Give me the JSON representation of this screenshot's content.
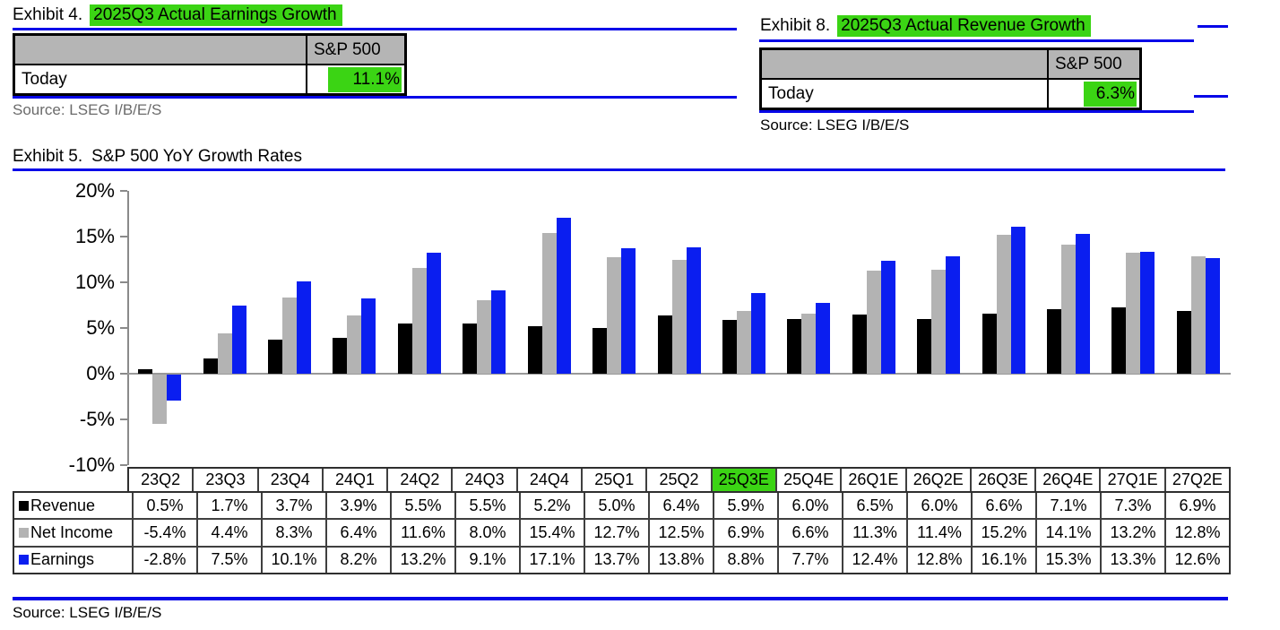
{
  "colors": {
    "rule_blue": "#0707e8",
    "highlight_green": "#3bd414",
    "table_header_gray": "#b5b5b5",
    "axis_gray": "#8a8a8a",
    "source_gray": "#6b6b6b"
  },
  "exhibit4": {
    "label": "Exhibit 4.",
    "title": "2025Q3 Actual Earnings Growth",
    "table": {
      "col_header": "S&P 500",
      "row_label": "Today",
      "value": "11.1%"
    },
    "source": "Source: LSEG I/B/E/S"
  },
  "exhibit8": {
    "label": "Exhibit 8.",
    "title": "2025Q3 Actual Revenue Growth",
    "table": {
      "col_header": "S&P 500",
      "row_label": "Today",
      "value": "6.3%"
    },
    "source": "Source: LSEG I/B/E/S"
  },
  "exhibit5": {
    "label": "Exhibit 5.",
    "title": "S&P 500 YoY Growth Rates",
    "source": "Source: LSEG I/B/E/S"
  },
  "chart_data": {
    "type": "bar",
    "title": "Exhibit 5.  S&P 500 YoY Growth Rates",
    "categories": [
      "23Q2",
      "23Q3",
      "23Q4",
      "24Q1",
      "24Q2",
      "24Q3",
      "24Q4",
      "25Q1",
      "25Q2",
      "25Q3E",
      "25Q4E",
      "26Q1E",
      "26Q2E",
      "26Q3E",
      "26Q4E",
      "27Q1E",
      "27Q2E"
    ],
    "highlighted_category": "25Q3E",
    "series": [
      {
        "name": "Revenue",
        "color": "#000000",
        "values": [
          0.5,
          1.7,
          3.7,
          3.9,
          5.5,
          5.5,
          5.2,
          5.0,
          6.4,
          5.9,
          6.0,
          6.5,
          6.0,
          6.6,
          7.1,
          7.3,
          6.9
        ]
      },
      {
        "name": "Net Income",
        "color": "#b3b3b3",
        "values": [
          -5.4,
          4.4,
          8.3,
          6.4,
          11.6,
          8.0,
          15.4,
          12.7,
          12.5,
          6.9,
          6.6,
          11.3,
          11.4,
          15.2,
          14.1,
          13.2,
          12.8
        ]
      },
      {
        "name": "Earnings",
        "color": "#0a1ef0",
        "values": [
          -2.8,
          7.5,
          10.1,
          8.2,
          13.2,
          9.1,
          17.1,
          13.7,
          13.8,
          8.8,
          7.7,
          12.4,
          12.8,
          16.1,
          15.3,
          13.3,
          12.6
        ]
      }
    ],
    "ylim": [
      -10,
      20
    ],
    "ytick_step": 5,
    "yticks": [
      20,
      15,
      10,
      5,
      0,
      -5,
      -10
    ],
    "ytick_labels": [
      "20%",
      "15%",
      "10%",
      "5%",
      "0%",
      "-5%",
      "-10%"
    ],
    "grid": "zero-line-only",
    "legend_position": "table-left-column",
    "value_suffix": "%"
  }
}
